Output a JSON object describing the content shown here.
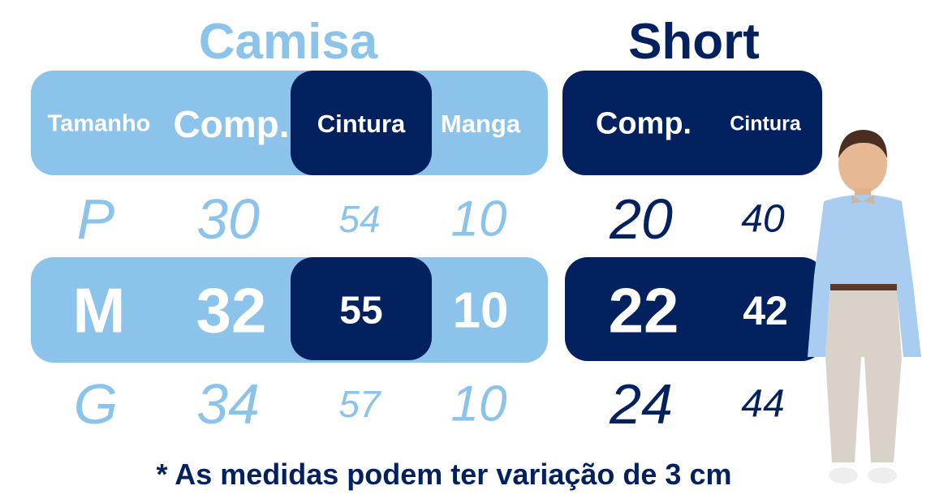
{
  "titles": {
    "shirt": "Camisa",
    "short": "Short"
  },
  "headers": {
    "size": "Tamanho",
    "shirt_length": "Comp.",
    "shirt_waist": "Cintura",
    "sleeve": "Manga",
    "short_length": "Comp.",
    "short_waist": "Cintura"
  },
  "rows": [
    {
      "size": "P",
      "shirt_length": "30",
      "shirt_waist": "54",
      "sleeve": "10",
      "short_length": "20",
      "short_waist": "40"
    },
    {
      "size": "M",
      "shirt_length": "32",
      "shirt_waist": "55",
      "sleeve": "10",
      "short_length": "22",
      "short_waist": "42"
    },
    {
      "size": "G",
      "shirt_length": "34",
      "shirt_waist": "57",
      "sleeve": "10",
      "short_length": "24",
      "short_waist": "44"
    }
  ],
  "footnote": "* As medidas podem ter variação de 3 cm",
  "colors": {
    "light_blue": "#8BC3EB",
    "navy": "#03205F"
  }
}
